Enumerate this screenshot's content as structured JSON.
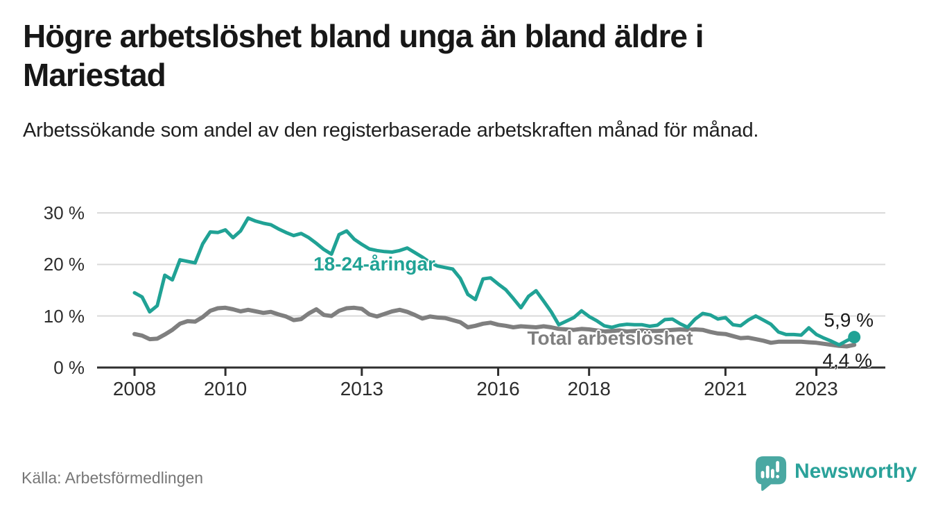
{
  "header": {
    "title": "Högre arbetslöshet bland unga än bland äldre i Mariestad",
    "subtitle": "Arbetssökande som andel av den registerbaserade arbetskraften månad för månad."
  },
  "footer": {
    "source": "Källa: Arbetsförmedlingen",
    "brand": "Newsworthy"
  },
  "colors": {
    "young_line": "#20a295",
    "total_line": "#7f7f7f",
    "axis": "#2e2e2e",
    "grid": "#d9d9d9",
    "text": "#1a1a1a",
    "brand_text": "#2aa29a",
    "brand_bubble": "#4aa8a2",
    "source_text": "#767676"
  },
  "chart_data": {
    "type": "line",
    "title": "Högre arbetslöshet bland unga än bland äldre i Mariestad",
    "subtitle": "Arbetssökande som andel av den registerbaserade arbetskraften månad för månad.",
    "xlabel": "",
    "ylabel": "",
    "unit": "%",
    "grid": true,
    "legend_position": "inline-labels",
    "x_start": 2008.0,
    "x_step_years": 0.1666667,
    "xlim": [
      2007.18,
      2024.5
    ],
    "ylim": [
      0,
      32
    ],
    "x_tick_values": [
      2008,
      2010,
      2013,
      2016,
      2018,
      2021,
      2023
    ],
    "x_tick_labels": [
      "2008",
      "2010",
      "2013",
      "2016",
      "2018",
      "2021",
      "2023"
    ],
    "y_tick_values": [
      30,
      20,
      10,
      0
    ],
    "y_tick_labels": [
      "30 %",
      "20 %",
      "10 %",
      "0 %"
    ],
    "series": [
      {
        "id": "young",
        "name": "18-24-åringar",
        "color": "#20a295",
        "width": 5,
        "end_label": "5,9 %",
        "end_value": 5.9,
        "end_dot": true,
        "values": [
          14.5,
          13.7,
          10.8,
          12.0,
          17.9,
          17.0,
          20.9,
          20.6,
          20.3,
          24.0,
          26.3,
          26.2,
          26.7,
          25.2,
          26.5,
          29.0,
          28.4,
          28.0,
          27.7,
          26.9,
          26.2,
          25.6,
          26.0,
          25.2,
          24.1,
          22.9,
          22.0,
          25.8,
          26.5,
          24.9,
          23.9,
          23.0,
          22.7,
          22.5,
          22.4,
          22.7,
          23.2,
          22.3,
          21.4,
          20.4,
          19.7,
          19.4,
          19.1,
          17.3,
          14.2,
          13.2,
          17.2,
          17.4,
          16.2,
          15.1,
          13.4,
          11.6,
          13.8,
          14.9,
          12.9,
          10.8,
          8.3,
          9.0,
          9.7,
          11.0,
          9.9,
          9.1,
          8.1,
          7.8,
          8.2,
          8.4,
          8.3,
          8.3,
          8.0,
          8.2,
          9.3,
          9.4,
          8.5,
          7.8,
          9.4,
          10.5,
          10.2,
          9.4,
          9.7,
          8.3,
          8.1,
          9.2,
          10.0,
          9.2,
          8.4,
          6.9,
          6.4,
          6.4,
          6.3,
          7.7,
          6.4,
          5.7,
          5.1,
          4.4,
          5.2,
          5.9
        ]
      },
      {
        "id": "total",
        "name": "Total arbetslöshet",
        "color": "#7f7f7f",
        "width": 6,
        "end_label": "4,4 %",
        "end_value": 4.4,
        "end_dot": false,
        "values": [
          6.5,
          6.2,
          5.5,
          5.6,
          6.4,
          7.3,
          8.5,
          9.0,
          8.9,
          9.8,
          11.0,
          11.5,
          11.6,
          11.3,
          10.9,
          11.2,
          10.9,
          10.6,
          10.8,
          10.3,
          9.9,
          9.2,
          9.4,
          10.5,
          11.3,
          10.2,
          10.0,
          11.0,
          11.5,
          11.6,
          11.4,
          10.3,
          9.9,
          10.4,
          10.9,
          11.2,
          10.8,
          10.2,
          9.5,
          9.9,
          9.7,
          9.6,
          9.2,
          8.8,
          7.8,
          8.1,
          8.5,
          8.7,
          8.3,
          8.1,
          7.8,
          8.0,
          7.9,
          7.8,
          8.0,
          7.8,
          7.5,
          7.4,
          7.3,
          7.5,
          7.4,
          7.2,
          7.0,
          7.1,
          7.2,
          7.0,
          7.1,
          7.2,
          7.1,
          7.1,
          7.2,
          7.3,
          7.4,
          7.3,
          7.4,
          7.3,
          6.9,
          6.6,
          6.5,
          6.1,
          5.7,
          5.8,
          5.5,
          5.2,
          4.8,
          5.0,
          5.0,
          5.0,
          5.0,
          4.9,
          4.8,
          4.6,
          4.4,
          4.2,
          4.1,
          4.4
        ]
      }
    ]
  }
}
